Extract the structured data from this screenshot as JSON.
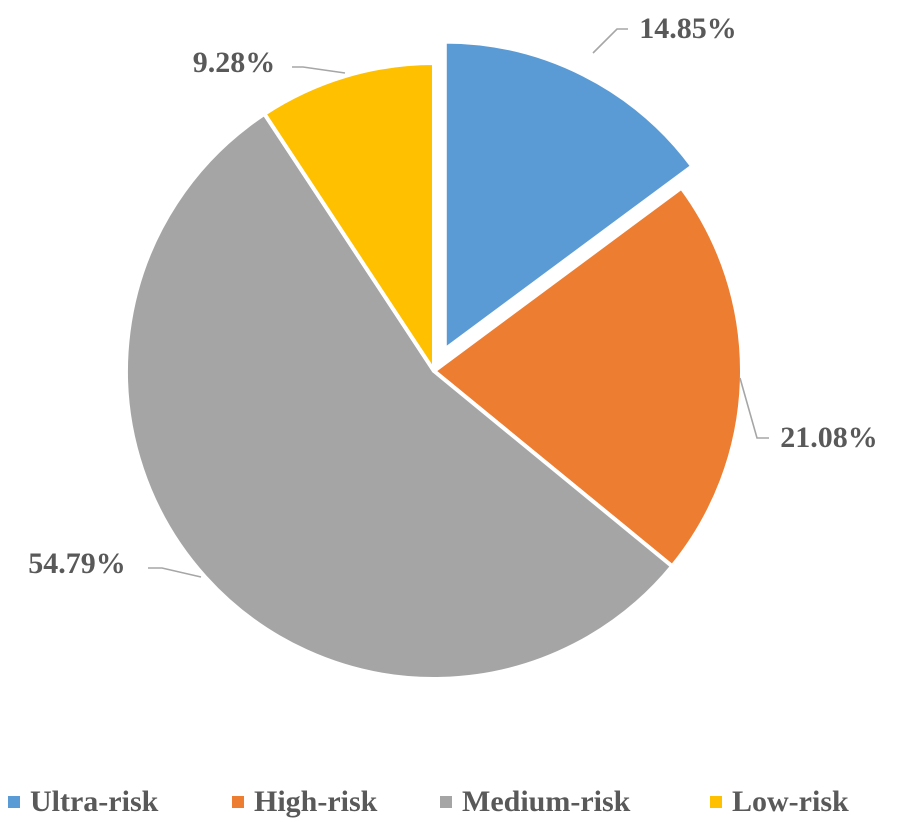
{
  "chart_data": {
    "type": "pie",
    "categories": [
      "Ultra-risk",
      "High-risk",
      "Medium-risk",
      "Low-risk"
    ],
    "values": [
      14.85,
      21.08,
      54.79,
      9.28
    ],
    "data_labels": [
      "14.85%",
      "21.08%",
      "54.79%",
      "9.28%"
    ],
    "colors": [
      "#5b9bd5",
      "#ed7d31",
      "#a5a5a5",
      "#ffc000"
    ],
    "exploded": [
      "Ultra-risk"
    ],
    "legend": {
      "position": "bottom",
      "entries": [
        "Ultra-risk",
        "High-risk",
        "Medium-risk",
        "Low-risk"
      ]
    },
    "title": ""
  }
}
